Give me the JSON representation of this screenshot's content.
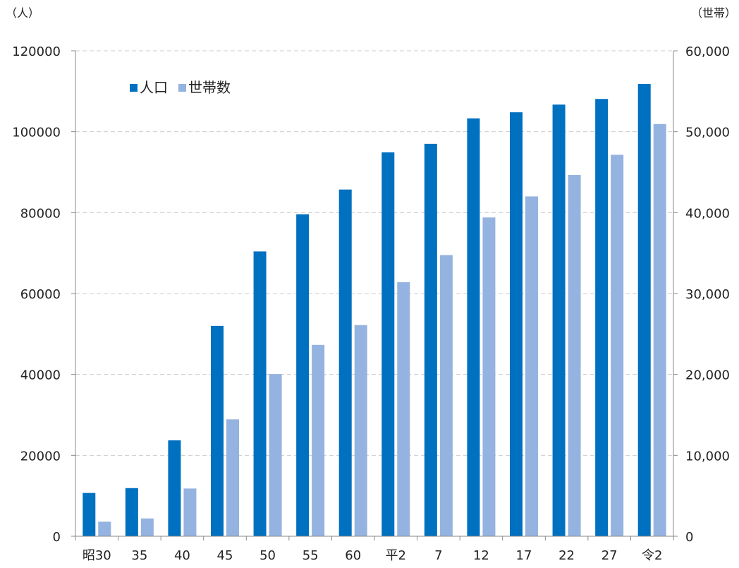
{
  "chart_data": {
    "type": "bar",
    "categories": [
      "昭30",
      "35",
      "40",
      "45",
      "50",
      "55",
      "60",
      "平2",
      "7",
      "12",
      "17",
      "22",
      "27",
      "令2"
    ],
    "series": [
      {
        "name": "人口",
        "axis": "left",
        "color": "#0070C0",
        "values": [
          10700,
          11900,
          23700,
          52000,
          70400,
          79600,
          85700,
          94900,
          97000,
          103300,
          104800,
          106700,
          108100,
          111800
        ]
      },
      {
        "name": "世帯数",
        "axis": "right",
        "color": "#95B3E0",
        "values": [
          1800,
          2200,
          5900,
          14450,
          20050,
          23650,
          26100,
          31400,
          34750,
          39400,
          42000,
          44650,
          47150,
          50950
        ]
      }
    ],
    "y_left": {
      "unit": "（人）",
      "ylim": [
        0,
        120000
      ],
      "ticks": [
        "0",
        "20000",
        "40000",
        "60000",
        "80000",
        "100000",
        "120000"
      ]
    },
    "y_right": {
      "unit": "（世帯）",
      "ylim": [
        0,
        60000
      ],
      "ticks": [
        "0",
        "10,000",
        "20,000",
        "30,000",
        "40,000",
        "50,000",
        "60,000"
      ]
    },
    "grid": true,
    "legend_position": "top-left",
    "colors": {
      "grid": "#CCCCCC",
      "axis": "#888888"
    }
  }
}
